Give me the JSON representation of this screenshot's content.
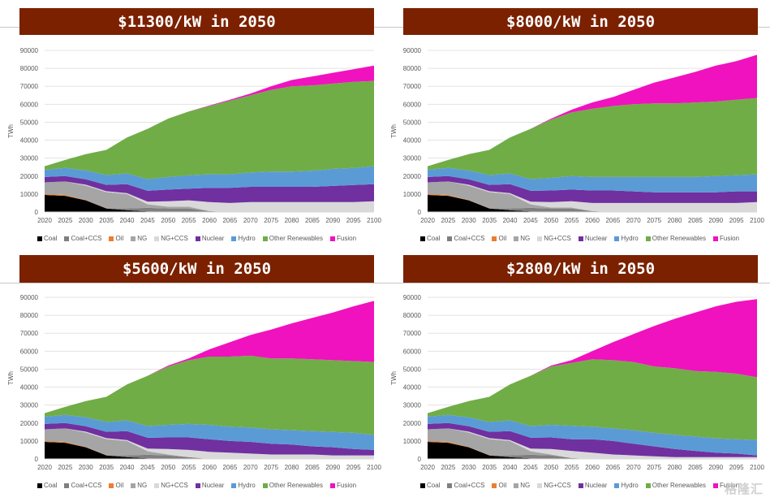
{
  "series_meta": [
    {
      "key": "coal",
      "name": "Coal",
      "color": "#000000"
    },
    {
      "key": "coalccs",
      "name": "Coal+CCS",
      "color": "#7f7f7f"
    },
    {
      "key": "oil",
      "name": "Oil",
      "color": "#ed7d31"
    },
    {
      "key": "ng",
      "name": "NG",
      "color": "#a5a5a5"
    },
    {
      "key": "ngccs",
      "name": "NG+CCS",
      "color": "#d9d9d9"
    },
    {
      "key": "nuclear",
      "name": "Nuclear",
      "color": "#7030a0"
    },
    {
      "key": "hydro",
      "name": "Hydro",
      "color": "#5b9bd5"
    },
    {
      "key": "renew",
      "name": "Other Renewables",
      "color": "#70ad47"
    },
    {
      "key": "fusion",
      "name": "Fusion",
      "color": "#f012be"
    }
  ],
  "watermark": "格隆汇",
  "chart_data": [
    {
      "type": "area",
      "stacked": true,
      "title": "$11300/kW in 2050",
      "xlabel": "",
      "ylabel": "TWh",
      "ylim": [
        0,
        90000
      ],
      "yticks": [
        "0",
        "10000",
        "20000",
        "30000",
        "40000",
        "50000",
        "60000",
        "70000",
        "80000",
        "90000"
      ],
      "grid": true,
      "legend": "bottom",
      "x": [
        "2020",
        "2025",
        "2030",
        "2035",
        "2040",
        "2045",
        "2050",
        "2055",
        "2060",
        "2065",
        "2070",
        "2075",
        "2080",
        "2085",
        "2090",
        "2095",
        "2100"
      ],
      "series": [
        {
          "name": "Coal",
          "values": [
            9500,
            9000,
            6500,
            2000,
            1000,
            300,
            0,
            0,
            0,
            0,
            0,
            0,
            0,
            0,
            0,
            0,
            0
          ]
        },
        {
          "name": "Coal+CCS",
          "values": [
            0,
            0,
            0,
            0,
            1000,
            2000,
            2000,
            2000,
            500,
            0,
            0,
            0,
            0,
            0,
            0,
            0,
            0
          ]
        },
        {
          "name": "Oil",
          "values": [
            500,
            500,
            200,
            100,
            0,
            0,
            0,
            0,
            0,
            0,
            0,
            0,
            0,
            0,
            0,
            0,
            0
          ]
        },
        {
          "name": "NG",
          "values": [
            6500,
            7500,
            8000,
            9000,
            8000,
            2000,
            1000,
            1000,
            0,
            0,
            0,
            0,
            0,
            0,
            0,
            0,
            0
          ]
        },
        {
          "name": "NG+CCS",
          "values": [
            0,
            0,
            500,
            500,
            500,
            1500,
            3000,
            3500,
            5000,
            5000,
            5500,
            5500,
            5500,
            5500,
            5500,
            5500,
            6000
          ]
        },
        {
          "name": "Nuclear",
          "values": [
            3000,
            3000,
            3000,
            3500,
            5000,
            6000,
            6500,
            6500,
            8000,
            8500,
            8500,
            8500,
            8500,
            8500,
            9000,
            9500,
            9500
          ]
        },
        {
          "name": "Hydro",
          "values": [
            4000,
            4500,
            5000,
            5500,
            6000,
            6500,
            7000,
            7500,
            7500,
            7500,
            8000,
            8500,
            8500,
            9000,
            9500,
            9500,
            10000
          ]
        },
        {
          "name": "Other Renewables",
          "values": [
            2000,
            4500,
            9000,
            14000,
            20000,
            28000,
            32500,
            35500,
            38000,
            41000,
            43000,
            45500,
            47500,
            47500,
            47500,
            48000,
            47500
          ]
        },
        {
          "name": "Fusion",
          "values": [
            0,
            0,
            0,
            0,
            0,
            0,
            0,
            0,
            300,
            500,
            1000,
            2000,
            3500,
            5000,
            6000,
            7000,
            8500
          ]
        }
      ]
    },
    {
      "type": "area",
      "stacked": true,
      "title": "$8000/kW in 2050",
      "xlabel": "",
      "ylabel": "TWh",
      "ylim": [
        0,
        90000
      ],
      "yticks": [
        "0",
        "10000",
        "20000",
        "30000",
        "40000",
        "50000",
        "60000",
        "70000",
        "80000",
        "90000"
      ],
      "grid": true,
      "legend": "bottom",
      "x": [
        "2020",
        "2025",
        "2030",
        "2035",
        "2040",
        "2045",
        "2050",
        "2055",
        "2060",
        "2065",
        "2070",
        "2075",
        "2080",
        "2085",
        "2090",
        "2095",
        "2100"
      ],
      "series": [
        {
          "name": "Coal",
          "values": [
            9500,
            9000,
            6500,
            2000,
            1000,
            300,
            0,
            0,
            0,
            0,
            0,
            0,
            0,
            0,
            0,
            0,
            0
          ]
        },
        {
          "name": "Coal+CCS",
          "values": [
            0,
            0,
            0,
            0,
            1000,
            2000,
            2000,
            2000,
            500,
            0,
            0,
            0,
            0,
            0,
            0,
            0,
            0
          ]
        },
        {
          "name": "Oil",
          "values": [
            500,
            500,
            200,
            100,
            0,
            0,
            0,
            0,
            0,
            0,
            0,
            0,
            0,
            0,
            0,
            0,
            0
          ]
        },
        {
          "name": "NG",
          "values": [
            6500,
            7500,
            8000,
            9000,
            8000,
            2000,
            500,
            500,
            0,
            0,
            0,
            0,
            0,
            0,
            0,
            0,
            0
          ]
        },
        {
          "name": "NG+CCS",
          "values": [
            0,
            0,
            500,
            500,
            500,
            1500,
            3000,
            3500,
            4500,
            5000,
            5000,
            5000,
            5000,
            5000,
            5000,
            5000,
            5500
          ]
        },
        {
          "name": "Nuclear",
          "values": [
            3000,
            3000,
            3000,
            3500,
            5000,
            6000,
            6500,
            6500,
            7000,
            7000,
            6500,
            6000,
            6000,
            6000,
            6000,
            6500,
            6000
          ]
        },
        {
          "name": "Hydro",
          "values": [
            4000,
            4500,
            5000,
            5500,
            6000,
            6500,
            7000,
            7500,
            7500,
            7500,
            8000,
            8500,
            8500,
            8500,
            9000,
            9000,
            9500
          ]
        },
        {
          "name": "Other Renewables",
          "values": [
            2000,
            4500,
            9000,
            14000,
            20000,
            28000,
            32500,
            35500,
            38000,
            39500,
            40500,
            41000,
            41000,
            41500,
            41500,
            42000,
            42500
          ]
        },
        {
          "name": "Fusion",
          "values": [
            0,
            0,
            0,
            0,
            0,
            0,
            500,
            1500,
            3500,
            5000,
            8000,
            11500,
            14500,
            17000,
            20000,
            21500,
            24000
          ]
        }
      ]
    },
    {
      "type": "area",
      "stacked": true,
      "title": "$5600/kW in 2050",
      "xlabel": "",
      "ylabel": "TWh",
      "ylim": [
        0,
        90000
      ],
      "yticks": [
        "0",
        "10000",
        "20000",
        "30000",
        "40000",
        "50000",
        "60000",
        "70000",
        "80000",
        "90000"
      ],
      "grid": true,
      "legend": "bottom",
      "x": [
        "2020",
        "2025",
        "2030",
        "2035",
        "2040",
        "2045",
        "2050",
        "2055",
        "2060",
        "2065",
        "2070",
        "2075",
        "2080",
        "2085",
        "2090",
        "2095",
        "2100"
      ],
      "series": [
        {
          "name": "Coal",
          "values": [
            9500,
            9000,
            6500,
            2000,
            1000,
            300,
            0,
            0,
            0,
            0,
            0,
            0,
            0,
            0,
            0,
            0,
            0
          ]
        },
        {
          "name": "Coal+CCS",
          "values": [
            0,
            0,
            0,
            0,
            1000,
            2000,
            2000,
            1000,
            0,
            0,
            0,
            0,
            0,
            0,
            0,
            0,
            0
          ]
        },
        {
          "name": "Oil",
          "values": [
            500,
            500,
            200,
            100,
            0,
            0,
            0,
            0,
            0,
            0,
            0,
            0,
            0,
            0,
            0,
            0,
            0
          ]
        },
        {
          "name": "NG",
          "values": [
            6500,
            7500,
            8000,
            9000,
            8000,
            2000,
            500,
            0,
            0,
            0,
            0,
            0,
            0,
            0,
            0,
            0,
            0
          ]
        },
        {
          "name": "NG+CCS",
          "values": [
            0,
            0,
            500,
            500,
            500,
            1500,
            3000,
            4000,
            4000,
            3500,
            3000,
            2500,
            2500,
            2500,
            2000,
            2000,
            2000
          ]
        },
        {
          "name": "Nuclear",
          "values": [
            3000,
            3000,
            3000,
            3500,
            5000,
            6000,
            6500,
            7000,
            7000,
            6500,
            6500,
            6000,
            5500,
            4500,
            4500,
            3500,
            3000
          ]
        },
        {
          "name": "Hydro",
          "values": [
            4000,
            4500,
            5000,
            5500,
            6000,
            6500,
            7000,
            7500,
            8000,
            8000,
            8000,
            8000,
            8000,
            8500,
            8500,
            9000,
            8500
          ]
        },
        {
          "name": "Other Renewables",
          "values": [
            2000,
            4500,
            9000,
            14000,
            20000,
            28000,
            32500,
            35500,
            38000,
            39000,
            40000,
            39500,
            40000,
            40000,
            40000,
            40000,
            40500
          ]
        },
        {
          "name": "Fusion",
          "values": [
            0,
            0,
            0,
            0,
            0,
            0,
            500,
            1000,
            4000,
            8000,
            11500,
            16000,
            19500,
            23000,
            26500,
            30500,
            34000
          ]
        }
      ]
    },
    {
      "type": "area",
      "stacked": true,
      "title": "$2800/kW in 2050",
      "xlabel": "",
      "ylabel": "TWh",
      "ylim": [
        0,
        90000
      ],
      "yticks": [
        "0",
        "10000",
        "20000",
        "30000",
        "40000",
        "50000",
        "60000",
        "70000",
        "80000",
        "90000"
      ],
      "grid": true,
      "legend": "bottom",
      "x": [
        "2020",
        "2025",
        "2030",
        "2035",
        "2040",
        "2045",
        "2050",
        "2055",
        "2060",
        "2065",
        "2070",
        "2075",
        "2080",
        "2085",
        "2090",
        "2095",
        "2100"
      ],
      "series": [
        {
          "name": "Coal",
          "values": [
            9500,
            9000,
            6500,
            2000,
            1000,
            300,
            0,
            0,
            0,
            0,
            0,
            0,
            0,
            0,
            0,
            0,
            0
          ]
        },
        {
          "name": "Coal+CCS",
          "values": [
            0,
            0,
            0,
            0,
            1000,
            2000,
            2000,
            500,
            0,
            0,
            0,
            0,
            0,
            0,
            0,
            0,
            0
          ]
        },
        {
          "name": "Oil",
          "values": [
            500,
            500,
            200,
            100,
            0,
            0,
            0,
            0,
            0,
            0,
            0,
            0,
            0,
            0,
            0,
            0,
            0
          ]
        },
        {
          "name": "NG",
          "values": [
            6500,
            7500,
            8000,
            9000,
            8000,
            2000,
            500,
            0,
            0,
            0,
            0,
            0,
            0,
            0,
            0,
            0,
            0
          ]
        },
        {
          "name": "NG+CCS",
          "values": [
            0,
            0,
            500,
            500,
            500,
            1500,
            3000,
            4000,
            3500,
            2500,
            2000,
            1500,
            1000,
            1000,
            1000,
            1000,
            1000
          ]
        },
        {
          "name": "Nuclear",
          "values": [
            3000,
            3000,
            3000,
            3500,
            5000,
            6000,
            6500,
            6500,
            7500,
            7500,
            6500,
            5500,
            4500,
            3500,
            2500,
            2000,
            1000
          ]
        },
        {
          "name": "Hydro",
          "values": [
            4000,
            4500,
            5000,
            5500,
            6000,
            6500,
            7000,
            7500,
            7000,
            7000,
            7500,
            7500,
            8000,
            8000,
            8000,
            8000,
            8500
          ]
        },
        {
          "name": "Other Renewables",
          "values": [
            2000,
            4500,
            9000,
            14000,
            20000,
            28000,
            32500,
            35000,
            37500,
            38000,
            38000,
            37000,
            37000,
            36500,
            37000,
            36500,
            35000
          ]
        },
        {
          "name": "Fusion",
          "values": [
            0,
            0,
            0,
            0,
            0,
            0,
            500,
            1500,
            4500,
            10000,
            15500,
            22500,
            27500,
            32500,
            36500,
            40000,
            43500
          ]
        }
      ]
    }
  ]
}
